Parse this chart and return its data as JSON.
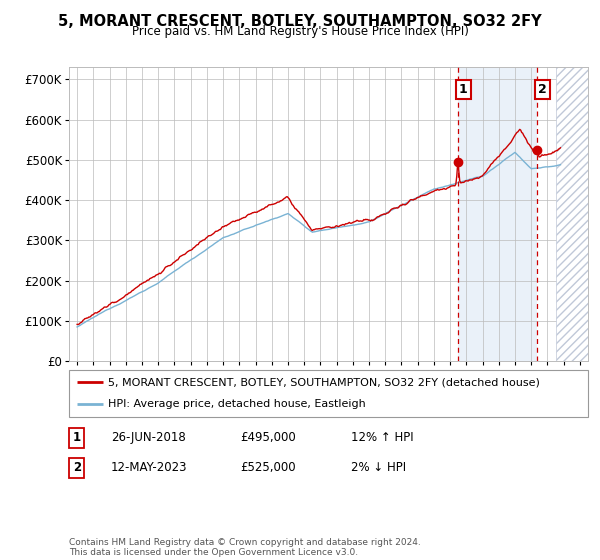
{
  "title": "5, MORANT CRESCENT, BOTLEY, SOUTHAMPTON, SO32 2FY",
  "subtitle": "Price paid vs. HM Land Registry's House Price Index (HPI)",
  "legend_line1": "5, MORANT CRESCENT, BOTLEY, SOUTHAMPTON, SO32 2FY (detached house)",
  "legend_line2": "HPI: Average price, detached house, Eastleigh",
  "footnote": "Contains HM Land Registry data © Crown copyright and database right 2024.\nThis data is licensed under the Open Government Licence v3.0.",
  "marker1_date": "26-JUN-2018",
  "marker1_price": 495000,
  "marker1_label": "£495,000",
  "marker1_hpi": "12% ↑ HPI",
  "marker2_date": "12-MAY-2023",
  "marker2_price": 525000,
  "marker2_label": "£525,000",
  "marker2_hpi": "2% ↓ HPI",
  "ylim": [
    0,
    730000
  ],
  "xlim_start": 1994.5,
  "xlim_end": 2026.5,
  "hpi_color": "#7ab3d4",
  "price_color": "#cc0000",
  "dashed_color": "#cc0000",
  "bg_color": "#dce8f5",
  "grid_color": "#bbbbbb",
  "marker1_x": 2018.48,
  "marker2_x": 2023.36,
  "future_start": 2024.5,
  "yticks": [
    0,
    100000,
    200000,
    300000,
    400000,
    500000,
    600000,
    700000
  ],
  "ylabels": [
    "£0",
    "£100K",
    "£200K",
    "£300K",
    "£400K",
    "£500K",
    "£600K",
    "£700K"
  ]
}
